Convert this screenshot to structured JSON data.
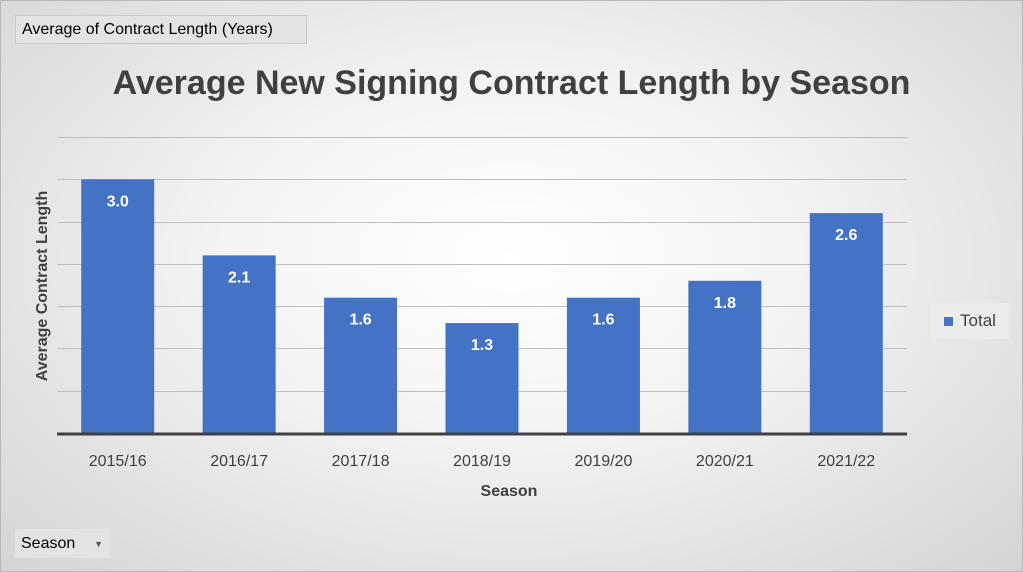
{
  "value_field_button": "Average  of Contract  Length  (Years)",
  "axis_field_button": "Season",
  "chart_data": {
    "type": "bar",
    "title": "Average New Signing Contract Length by Season",
    "xlabel": "Season",
    "ylabel": "Average Contract Length",
    "categories": [
      "2015/16",
      "2016/17",
      "2017/18",
      "2018/19",
      "2019/20",
      "2020/21",
      "2021/22"
    ],
    "series": [
      {
        "name": "Total",
        "values": [
          3.0,
          2.1,
          1.6,
          1.3,
          1.6,
          1.8,
          2.6
        ],
        "labels": [
          "3.0",
          "2.1",
          "1.6",
          "1.3",
          "1.6",
          "1.8",
          "2.6"
        ]
      }
    ],
    "ylim": [
      0,
      3.5
    ],
    "grid": true,
    "legend_position": "right",
    "colors": {
      "bar": "#4472c4",
      "gridline": "#bfbfbf",
      "axis": "#404040"
    }
  }
}
